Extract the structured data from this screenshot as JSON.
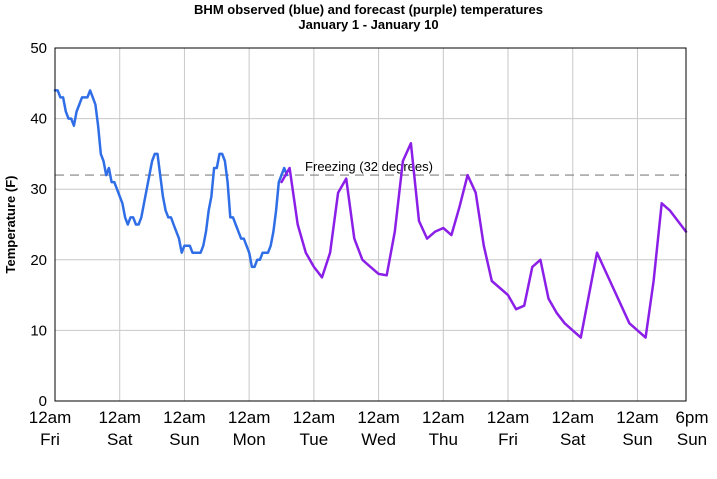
{
  "chart_data": {
    "type": "line",
    "title": "BHM observed (blue) and forecast (purple) temperatures",
    "subtitle": "January 1 - January 10",
    "ylabel": "Temperature (F)",
    "xlabel": "",
    "ylim": [
      0,
      50
    ],
    "xlim_hours": [
      0,
      234
    ],
    "y_ticks": [
      "0",
      "10",
      "20",
      "30",
      "40",
      "50"
    ],
    "x_ticks": [
      {
        "hour": 0,
        "top": "12am",
        "bottom": "Fri"
      },
      {
        "hour": 24,
        "top": "12am",
        "bottom": "Sat"
      },
      {
        "hour": 48,
        "top": "12am",
        "bottom": "Sun"
      },
      {
        "hour": 72,
        "top": "12am",
        "bottom": "Mon"
      },
      {
        "hour": 96,
        "top": "12am",
        "bottom": "Tue"
      },
      {
        "hour": 120,
        "top": "12am",
        "bottom": "Wed"
      },
      {
        "hour": 144,
        "top": "12am",
        "bottom": "Thu"
      },
      {
        "hour": 168,
        "top": "12am",
        "bottom": "Fri"
      },
      {
        "hour": 192,
        "top": "12am",
        "bottom": "Sat"
      },
      {
        "hour": 216,
        "top": "12am",
        "bottom": "Sun"
      },
      {
        "hour": 234,
        "top": "6pm",
        "bottom": "Sun"
      }
    ],
    "grid": true,
    "reference_line": {
      "y": 32,
      "label": "Freezing (32 degrees)",
      "color": "#808080"
    },
    "series": [
      {
        "color": "#2f6ee6",
        "x": [
          0,
          1,
          2,
          3,
          4,
          5,
          6,
          7,
          8,
          9,
          10,
          11,
          12,
          13,
          14,
          15,
          16,
          17,
          18,
          19,
          20,
          21,
          22,
          23,
          24,
          25,
          26,
          27,
          28,
          29,
          30,
          31,
          32,
          33,
          34,
          35,
          36,
          37,
          38,
          39,
          40,
          41,
          42,
          43,
          44,
          45,
          46,
          47,
          48,
          49,
          50,
          51,
          52,
          53,
          54,
          55,
          56,
          57,
          58,
          59,
          60,
          61,
          62,
          63,
          64,
          65,
          66,
          67,
          68,
          69,
          70,
          71,
          72,
          73,
          74,
          75,
          76,
          77,
          78,
          79,
          80,
          81,
          82,
          83,
          84,
          85,
          86
        ],
        "y": [
          44,
          44,
          43,
          43,
          41,
          40,
          40,
          39,
          41,
          42,
          43,
          43,
          43,
          44,
          43,
          42,
          39,
          35,
          34,
          32,
          33,
          31,
          31,
          30,
          29,
          28,
          26,
          25,
          26,
          26,
          25,
          25,
          26,
          28,
          30,
          32,
          34,
          35,
          35,
          32,
          29,
          27,
          26,
          26,
          25,
          24,
          23,
          21,
          22,
          22,
          22,
          21,
          21,
          21,
          21,
          22,
          24,
          27,
          29,
          33,
          33,
          35,
          35,
          34,
          31,
          26,
          26,
          25,
          24,
          23,
          23,
          22,
          21,
          19,
          19,
          20,
          20,
          21,
          21,
          21,
          22,
          24,
          27,
          31,
          32,
          33,
          32
        ]
      },
      {
        "color": "#8b1fe8",
        "x": [
          84,
          87,
          90,
          93,
          96,
          99,
          102,
          105,
          108,
          111,
          114,
          117,
          120,
          123,
          126,
          129,
          132,
          135,
          138,
          141,
          144,
          147,
          150,
          153,
          156,
          159,
          162,
          165,
          168,
          171,
          174,
          177,
          180,
          183,
          186,
          189,
          192,
          195,
          198,
          201,
          204,
          207,
          210,
          213,
          216,
          219,
          222,
          225,
          228,
          231,
          234
        ],
        "y": [
          31,
          33,
          25,
          21,
          19,
          17.5,
          21,
          29.5,
          31.5,
          23,
          20,
          19,
          18,
          17.8,
          24,
          34,
          36.5,
          25.5,
          23,
          24,
          24.5,
          23.5,
          27.5,
          32,
          29.5,
          22,
          17,
          16,
          15,
          13,
          13.5,
          19,
          20,
          14.5,
          12.5,
          11,
          10,
          9,
          15,
          21,
          18.5,
          16,
          13.5,
          11,
          10,
          9,
          17,
          28,
          27,
          25.5,
          24
        ]
      }
    ]
  }
}
